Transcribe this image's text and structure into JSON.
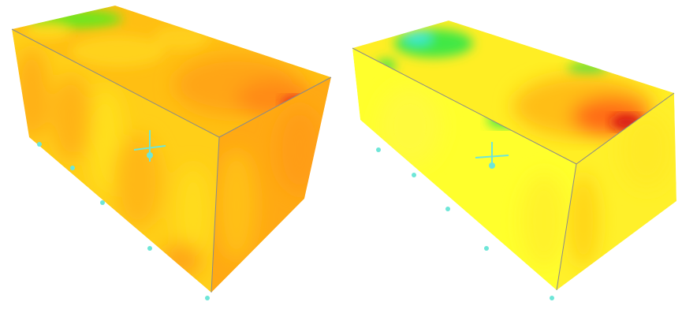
{
  "figure": {
    "panel_count": 2,
    "panels": [
      {
        "id": "left",
        "palette": [
          "#ffd21a",
          "#ffbf0f",
          "#ff9f12",
          "#e81e12",
          "#58e61e",
          "#6fe8c9"
        ]
      },
      {
        "id": "right",
        "palette": [
          "#ffff2a",
          "#ffe41b",
          "#ffb413",
          "#ff3c12",
          "#d51212",
          "#40ea45",
          "#3ee7d8"
        ]
      }
    ]
  }
}
